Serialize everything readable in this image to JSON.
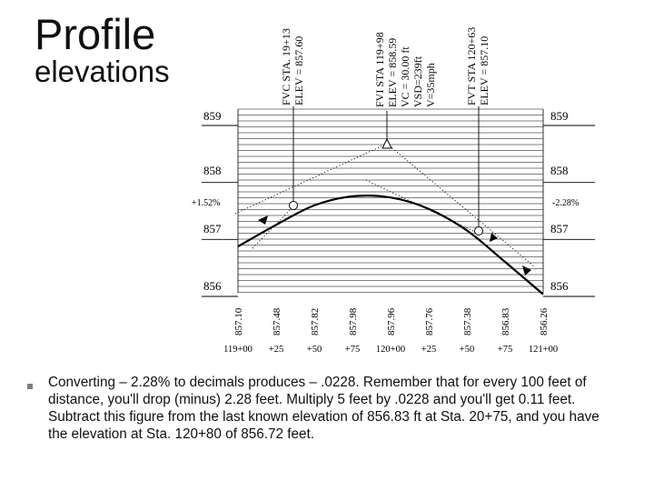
{
  "title": {
    "line1": "Profile",
    "line2": "elevations"
  },
  "points": {
    "pvc": {
      "station": "FVC STA. 19+13",
      "elevation": "ELEV = 857.60"
    },
    "pvi": {
      "station": "FVI STA 119+98",
      "elevation": "ELEV = 858.59",
      "vc": "VC = 30.00 ft",
      "vsd": "VSD=239ft",
      "speed": "V=35mph"
    },
    "pvt": {
      "station": "FVT STA 120+63",
      "elevation": "ELEV = 857.10"
    }
  },
  "grades": {
    "left": "+1.52%",
    "right": "-2.28%"
  },
  "elevation_labels": [
    "859",
    "858",
    "857",
    "856"
  ],
  "bottom_elevations": [
    "857.10",
    "857.48",
    "857.82",
    "857.98",
    "857.96",
    "857.76",
    "857.38",
    "856.83",
    "856.26"
  ],
  "station_labels": [
    "119+00",
    "+25",
    "+50",
    "+75",
    "120+00",
    "+25",
    "+50",
    "+75",
    "121+00"
  ],
  "note": "Converting – 2.28% to decimals produces – .0228. Remember that for every 100 feet of distance, you'll drop (minus) 2.28 feet. Multiply 5 feet by .0228 and you'll get 0.11 feet. Subtract this figure from the last known elevation of 856.83 ft at Sta. 20+75, and you have the elevation at Sta. 120+80 of 856.72 feet.",
  "colors": {
    "ink": "#000000",
    "bullet": "#7f7f7f"
  },
  "chart_data": {
    "type": "line",
    "x": [
      0,
      25,
      50,
      75,
      100,
      125,
      150,
      175,
      200
    ],
    "x_tick_labels": [
      "119+00",
      "+25",
      "+50",
      "+75",
      "120+00",
      "+25",
      "+50",
      "+75",
      "121+00"
    ],
    "y_tick_labels": [
      "859",
      "858",
      "857",
      "856"
    ],
    "ylim": [
      855.6,
      859.2
    ],
    "series": [
      {
        "values": [
          857.1,
          857.48,
          857.82,
          857.98,
          857.96,
          857.76,
          857.38,
          856.83,
          856.26
        ]
      }
    ],
    "grid": true
  }
}
